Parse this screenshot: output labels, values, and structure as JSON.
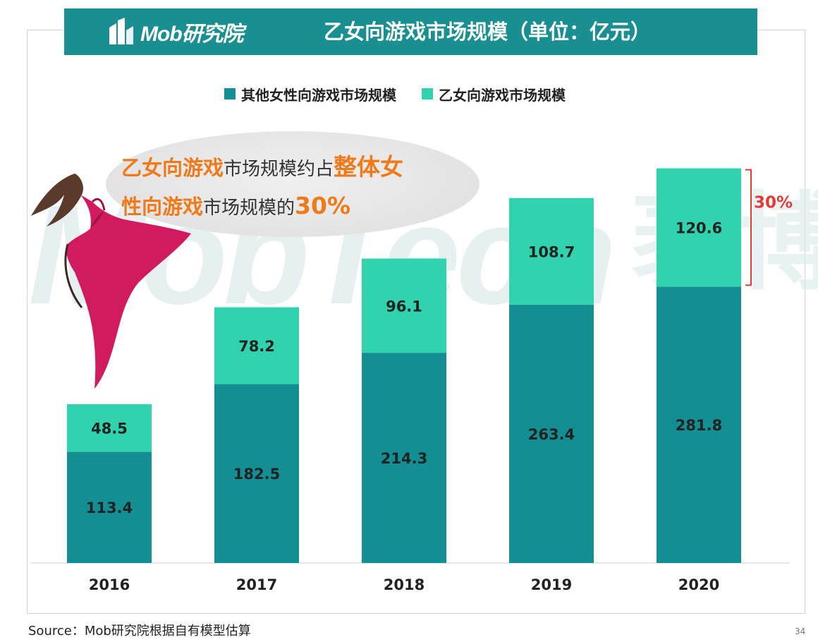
{
  "header": {
    "logo_text": "Mob研究院",
    "title": "乙女向游戏市场规模（单位：亿元）"
  },
  "legend": {
    "items": [
      {
        "label": "其他女性向游戏市场规模",
        "color": "#138f94"
      },
      {
        "label": "乙女向游戏市场规模",
        "color": "#30d3ae"
      }
    ]
  },
  "callout": {
    "line1_orange": "乙女向游戏",
    "line1_dark": "市场规模约占",
    "line1_big": "整体女",
    "line2_orange": "性向游戏",
    "line2_dark": "市场规模的",
    "line2_big": "30%"
  },
  "watermark": {
    "text": "MobTech",
    "text_cn": "袤博"
  },
  "chart_data": {
    "type": "bar",
    "stacked": true,
    "title": "乙女向游戏市场规模（单位：亿元）",
    "categories": [
      "2016",
      "2017",
      "2018",
      "2019",
      "2020"
    ],
    "series": [
      {
        "name": "其他女性向游戏市场规模",
        "values": [
          113.4,
          182.5,
          214.3,
          263.4,
          281.8
        ],
        "color": "#138f94"
      },
      {
        "name": "乙女向游戏市场规模",
        "values": [
          48.5,
          78.2,
          96.1,
          108.7,
          120.6
        ],
        "color": "#30d3ae"
      }
    ],
    "annotation": {
      "label": "30%",
      "category": "2020",
      "color": "#e53935"
    },
    "xlabel": "",
    "ylabel": "",
    "ylim": [
      0,
      410
    ]
  },
  "source": "Source：Mob研究院根据自有模型估算",
  "page_number": "34"
}
